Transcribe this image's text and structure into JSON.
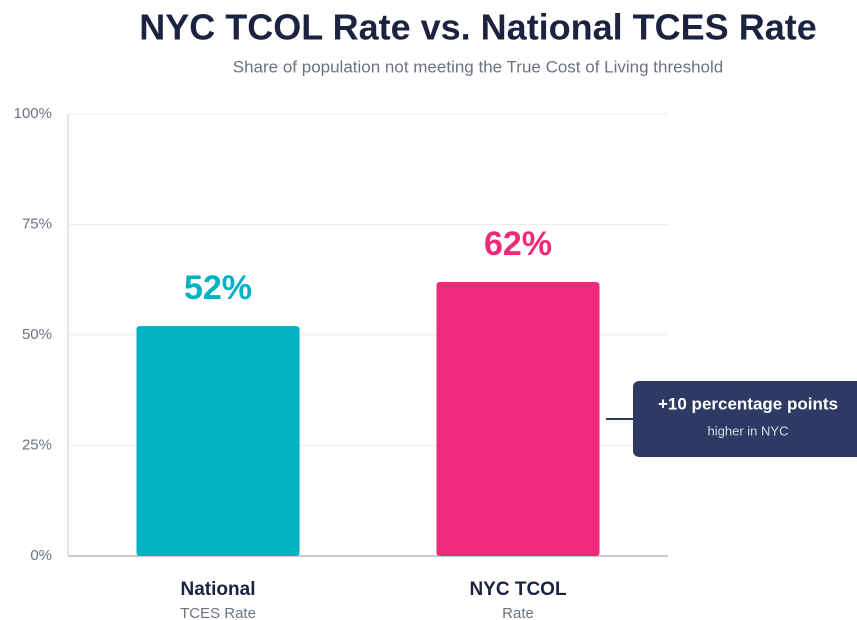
{
  "chart_data": {
    "type": "bar",
    "title": "NYC TCOL Rate vs. National TCES Rate",
    "subtitle": "Share of population not meeting the True Cost of Living threshold",
    "categories": [
      "National",
      "NYC TCOL"
    ],
    "category_sublabels": [
      "TCES Rate",
      "Rate"
    ],
    "values": [
      52,
      62
    ],
    "value_labels": [
      "52%",
      "62%"
    ],
    "colors": [
      "#00b2c2",
      "#ee2a7b"
    ],
    "ylim": [
      0,
      100
    ],
    "yticks": [
      {
        "value": 0,
        "label": "0%"
      },
      {
        "value": 25,
        "label": "25%"
      },
      {
        "value": 50,
        "label": "50%"
      },
      {
        "value": 75,
        "label": "75%"
      },
      {
        "value": 100,
        "label": "100%"
      }
    ],
    "grid": true,
    "annotation": {
      "title": "+10 percentage points",
      "text": "higher in NYC"
    }
  }
}
